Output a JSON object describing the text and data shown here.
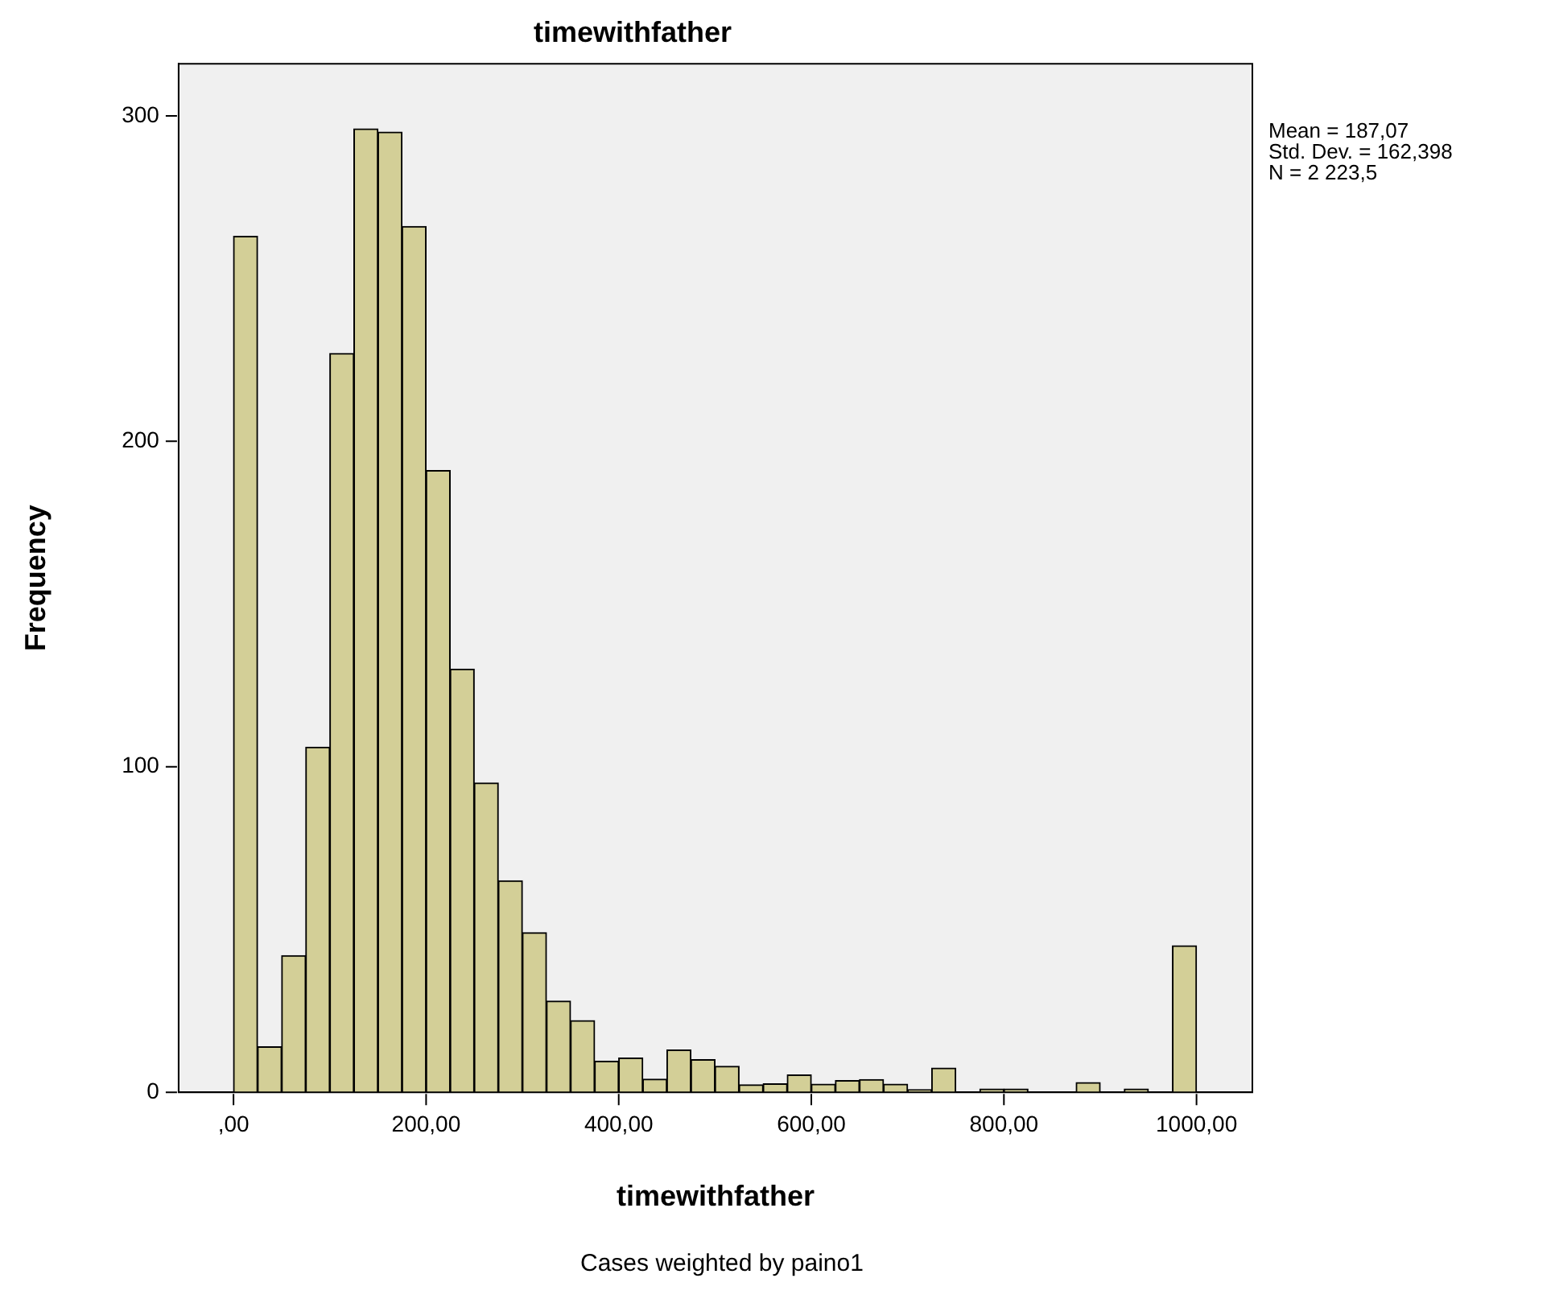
{
  "chart_data": {
    "type": "histogram",
    "title": "timewithfather",
    "xlabel": "timewithfather",
    "ylabel": "Frequency",
    "bins": [
      0,
      25,
      50,
      75,
      100,
      125,
      150,
      175,
      200,
      225,
      250,
      275,
      300,
      325,
      350,
      375,
      400,
      425,
      450,
      475,
      500,
      525,
      550,
      575,
      600,
      625,
      650,
      675,
      700,
      725,
      750,
      775,
      800,
      825,
      850,
      875,
      900,
      925,
      950,
      975,
      1000
    ],
    "values": [
      263,
      14,
      42,
      106,
      227,
      296,
      295,
      266,
      191,
      130,
      95,
      65,
      49,
      28,
      22,
      9.5,
      10.5,
      4,
      13,
      10,
      8,
      2.3,
      2.6,
      5.3,
      2.5,
      3.6,
      3.9,
      2.5,
      0.8,
      7.4,
      0,
      1,
      1,
      0,
      0,
      3,
      0,
      1,
      0,
      45
    ],
    "color": "#d3cf97",
    "xlim": [
      -57,
      1058
    ],
    "xticks": [
      {
        "value": 0,
        "label": ",00"
      },
      {
        "value": 200,
        "label": "200,00"
      },
      {
        "value": 400,
        "label": "400,00"
      },
      {
        "value": 600,
        "label": "600,00"
      },
      {
        "value": 800,
        "label": "800,00"
      },
      {
        "value": 1000,
        "label": "1000,00"
      }
    ],
    "ylim": [
      0,
      316
    ],
    "yticks": [
      0,
      100,
      200,
      300
    ],
    "grid": false,
    "legend": false,
    "annotations": [
      "Mean = 187,07",
      "Std. Dev. = 162,398",
      "N = 2 223,5",
      "Cases weighted by paino1"
    ]
  }
}
